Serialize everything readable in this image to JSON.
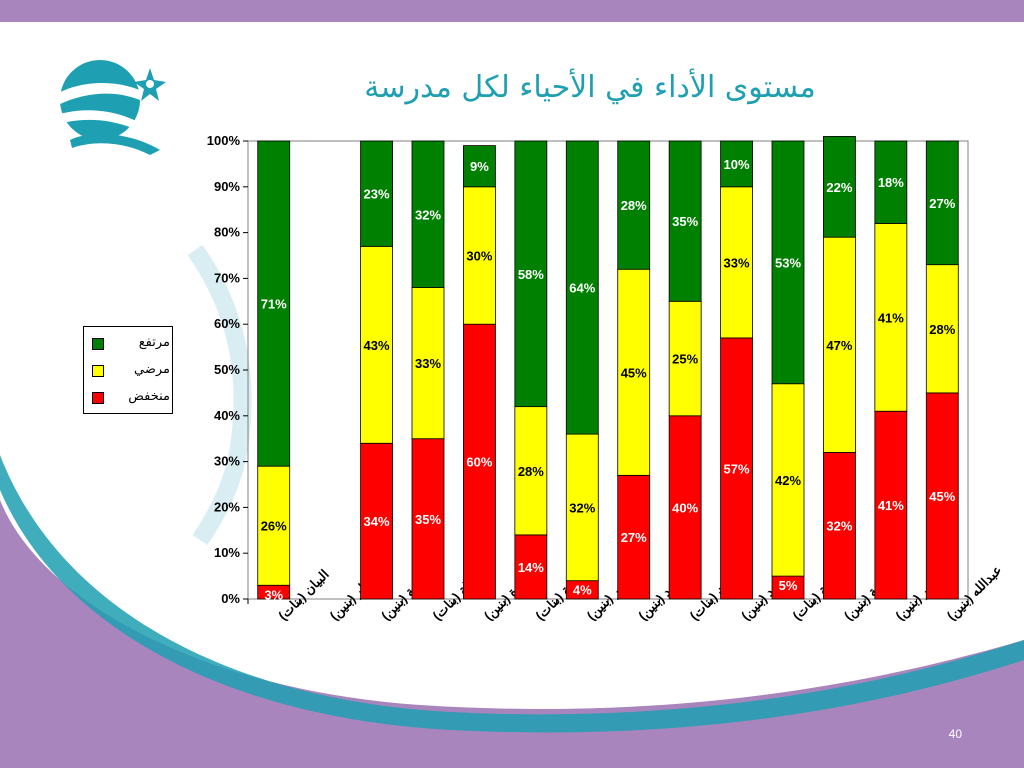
{
  "slide": {
    "title": "مستوى الأداء في الأحياء لكل مدرسة",
    "page_number": "40",
    "colors": {
      "top_band": "#a985bd",
      "swoosh": "#a985bd",
      "teal": "#1e9fb2",
      "high": "#008000",
      "medium": "#ffff00",
      "low": "#ff0000"
    }
  },
  "chart_data": {
    "type": "bar",
    "stacked": true,
    "percent": true,
    "categories": [
      "البيان (بنات)",
      "قطر (بنين)",
      "الدوحة (بنين)",
      "الرسالة (بنات)",
      "الوكرة (بنين)",
      "آمنة (بنات)",
      "عمر (بنين)",
      "أحمد (بنين)",
      "الإيمان (بنات)",
      "محمد (بنين)",
      "الشحانية (بنات)",
      "خليفة (بنين)",
      "ناصر (بنين)",
      "عبدالله (بنين)"
    ],
    "series": [
      {
        "name": "منخفض",
        "color": "#ff0000",
        "values": [
          3,
          0,
          34,
          35,
          60,
          14,
          4,
          27,
          40,
          57,
          5,
          32,
          41,
          45
        ]
      },
      {
        "name": "مرضي",
        "color": "#ffff00",
        "values": [
          26,
          0,
          43,
          33,
          30,
          28,
          32,
          45,
          25,
          33,
          42,
          47,
          41,
          28
        ]
      },
      {
        "name": "مرتفع",
        "color": "#008000",
        "values": [
          71,
          0,
          23,
          32,
          9,
          58,
          64,
          28,
          35,
          10,
          53,
          22,
          18,
          27
        ]
      }
    ],
    "labels": [
      [
        "3%",
        "",
        "34%",
        "35%",
        "60%",
        "14%",
        "4%",
        "27%",
        "40%",
        "57%",
        "5%",
        "32%",
        "41%",
        "45%"
      ],
      [
        "26%",
        "",
        "43%",
        "33%",
        "30%",
        "28%",
        "32%",
        "45%",
        "25%",
        "33%",
        "42%",
        "47%",
        "41%",
        "28%"
      ],
      [
        "71%",
        "",
        "23%",
        "32%",
        "9%",
        "58%",
        "64%",
        "28%",
        "35%",
        "10%",
        "53%",
        "22%",
        "18%",
        "27%"
      ]
    ],
    "y_ticks": [
      "0%",
      "10%",
      "20%",
      "30%",
      "40%",
      "50%",
      "60%",
      "70%",
      "80%",
      "90%",
      "100%"
    ],
    "ylim": [
      0,
      100
    ],
    "grid": false,
    "legend_position": "left",
    "legend": [
      "مرتفع",
      "مرضي",
      "منخفض"
    ]
  }
}
